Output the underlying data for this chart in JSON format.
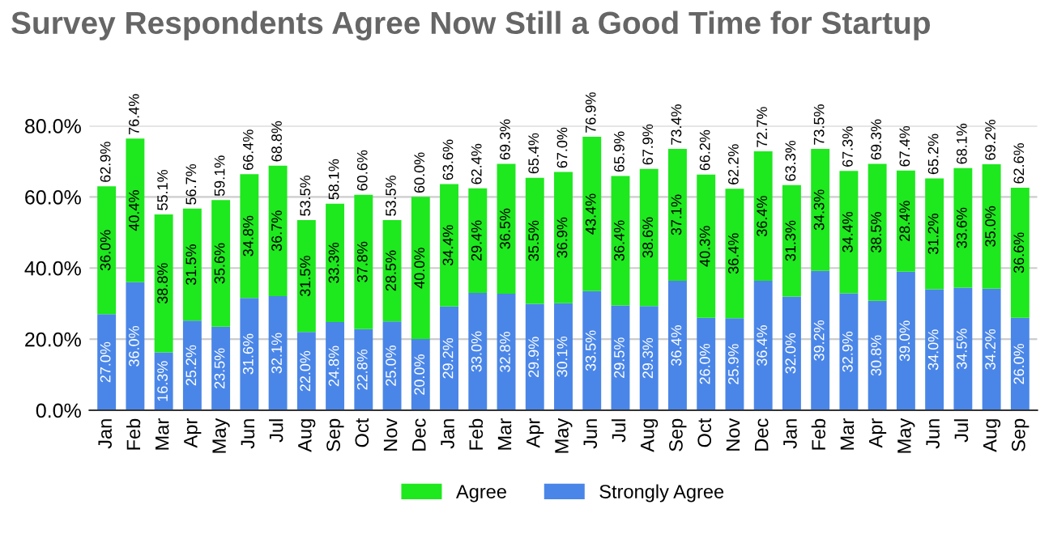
{
  "chart_data": {
    "type": "bar",
    "stacked": true,
    "title": "Survey Respondents Agree Now Still a Good Time for Startup",
    "categories": [
      "Jan",
      "Feb",
      "Mar",
      "Apr",
      "May",
      "Jun",
      "Jul",
      "Aug",
      "Sep",
      "Oct",
      "Nov",
      "Dec",
      "Jan",
      "Feb",
      "Mar",
      "Apr",
      "May",
      "Jun",
      "Jul",
      "Aug",
      "Sep",
      "Oct",
      "Nov",
      "Dec",
      "Jan",
      "Feb",
      "Mar",
      "Apr",
      "May",
      "Jun",
      "Jul",
      "Aug",
      "Sep"
    ],
    "series": [
      {
        "name": "Strongly Agree",
        "color": "#4a86e8",
        "values": [
          27.0,
          36.0,
          16.3,
          25.2,
          23.5,
          31.6,
          32.1,
          22.0,
          24.8,
          22.8,
          25.0,
          20.0,
          29.2,
          33.0,
          32.8,
          29.9,
          30.1,
          33.5,
          29.5,
          29.3,
          36.4,
          26.0,
          25.9,
          36.4,
          32.0,
          39.2,
          32.9,
          30.8,
          39.0,
          34.0,
          34.5,
          34.2,
          26.0
        ],
        "value_labels": [
          "27.0%",
          "36.0%",
          "16.3%",
          "25.2%",
          "23.5%",
          "31.6%",
          "32.1%",
          "22.0%",
          "24.8%",
          "22.8%",
          "25.0%",
          "20.0%",
          "29.2%",
          "33.0%",
          "32.8%",
          "29.9%",
          "30.1%",
          "33.5%",
          "29.5%",
          "29.3%",
          "36.4%",
          "26.0%",
          "25.9%",
          "36.4%",
          "32.0%",
          "39.2%",
          "32.9%",
          "30.8%",
          "39.0%",
          "34.0%",
          "34.5%",
          "34.2%",
          "26.0%"
        ]
      },
      {
        "name": "Agree",
        "color": "#1ee81e",
        "values": [
          36.0,
          40.4,
          38.8,
          31.5,
          35.6,
          34.8,
          36.7,
          31.5,
          33.3,
          37.8,
          28.5,
          40.0,
          34.4,
          29.4,
          36.5,
          35.5,
          36.9,
          43.4,
          36.4,
          38.6,
          37.1,
          40.3,
          36.4,
          36.4,
          31.3,
          34.3,
          34.4,
          38.5,
          28.4,
          31.2,
          33.6,
          35.0,
          36.6
        ],
        "value_labels": [
          "36.0%",
          "40.4%",
          "38.8%",
          "31.5%",
          "35.6%",
          "34.8%",
          "36.7%",
          "31.5%",
          "33.3%",
          "37.8%",
          "28.5%",
          "40.0%",
          "34.4%",
          "29.4%",
          "36.5%",
          "35.5%",
          "36.9%",
          "43.4%",
          "36.4%",
          "38.6%",
          "37.1%",
          "40.3%",
          "36.4%",
          "36.4%",
          "31.3%",
          "34.3%",
          "34.4%",
          "38.5%",
          "28.4%",
          "31.2%",
          "33.6%",
          "35.0%",
          "36.6%"
        ]
      }
    ],
    "totals": [
      "62.9%",
      "76.4%",
      "55.1%",
      "56.7%",
      "59.1%",
      "66.4%",
      "68.8%",
      "53.5%",
      "58.1%",
      "60.6%",
      "53.5%",
      "60.0%",
      "63.6%",
      "62.4%",
      "69.3%",
      "65.4%",
      "67.0%",
      "76.9%",
      "65.9%",
      "67.9%",
      "73.4%",
      "66.2%",
      "62.2%",
      "72.7%",
      "63.3%",
      "73.5%",
      "67.3%",
      "69.3%",
      "67.4%",
      "65.2%",
      "68.1%",
      "69.2%",
      "62.6%"
    ],
    "ylim": [
      0,
      80
    ],
    "yticks": [
      {
        "value": 0,
        "label": "0.0%"
      },
      {
        "value": 20,
        "label": "20.0%"
      },
      {
        "value": 40,
        "label": "40.0%"
      },
      {
        "value": 60,
        "label": "60.0%"
      },
      {
        "value": 80,
        "label": "80.0%"
      }
    ],
    "grid": "y",
    "legend": "bottom"
  }
}
